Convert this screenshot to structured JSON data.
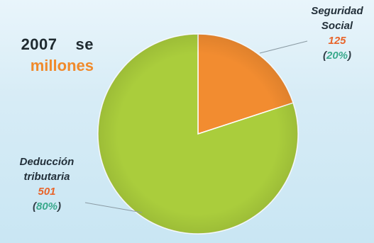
{
  "headline": {
    "line1_left": "2007",
    "line1_right": "se",
    "line2": "millones"
  },
  "colors": {
    "seguridad_social": "#f28c30",
    "deduccion_tributaria": "#aacd3c",
    "value_text": "#e8642a",
    "percent_text": "#3aa98c"
  },
  "chart_data": {
    "type": "pie",
    "slices": [
      {
        "name_line1": "Seguridad",
        "name_line2": "Social",
        "value": 125,
        "value_label": "125",
        "percent": 20,
        "percent_label": "20%",
        "paren_open": "(",
        "paren_close": ")"
      },
      {
        "name_line1": "Deducción",
        "name_line2": "tributaria",
        "value": 501,
        "value_label": "501",
        "percent": 80,
        "percent_label": "80%",
        "paren_open": "(",
        "paren_close": ")"
      }
    ]
  }
}
